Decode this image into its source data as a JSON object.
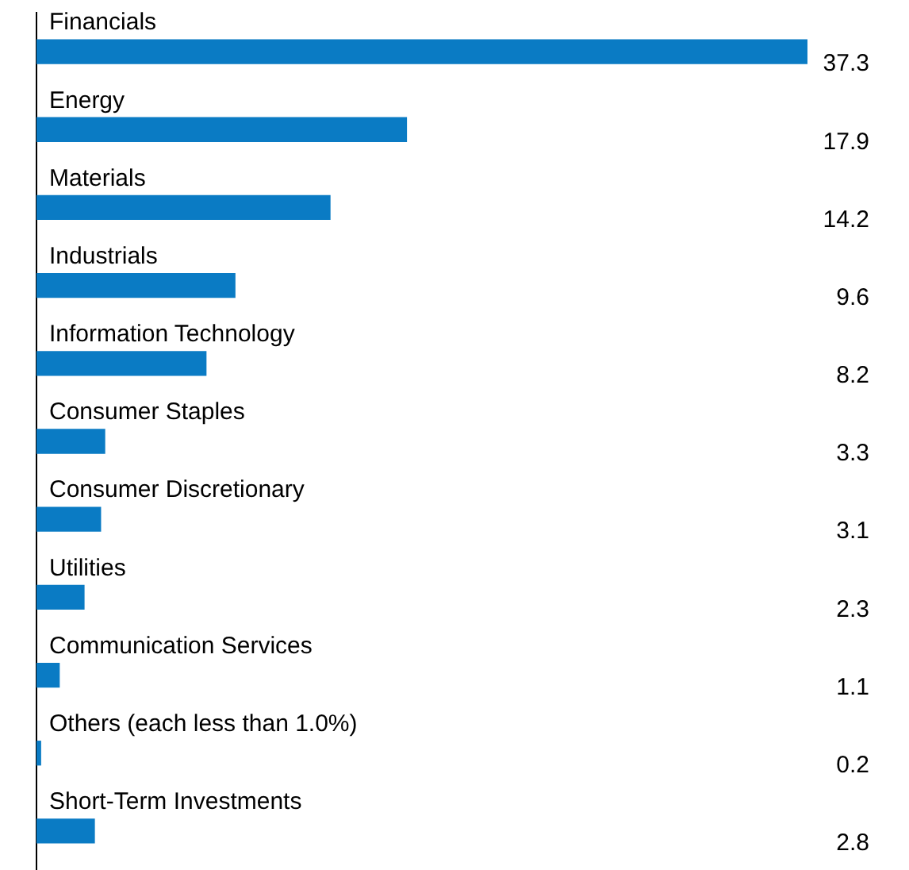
{
  "chart_data": {
    "type": "bar",
    "orientation": "horizontal",
    "categories": [
      "Financials",
      "Energy",
      "Materials",
      "Industrials",
      "Information Technology",
      "Consumer Staples",
      "Consumer Discretionary",
      "Utilities",
      "Communication Services",
      "Others (each less than 1.0%)",
      "Short-Term Investments"
    ],
    "values": [
      37.3,
      17.9,
      14.2,
      9.6,
      8.2,
      3.3,
      3.1,
      2.3,
      1.1,
      0.2,
      2.8
    ],
    "color": "#0a7bc4",
    "data_labels": true
  }
}
